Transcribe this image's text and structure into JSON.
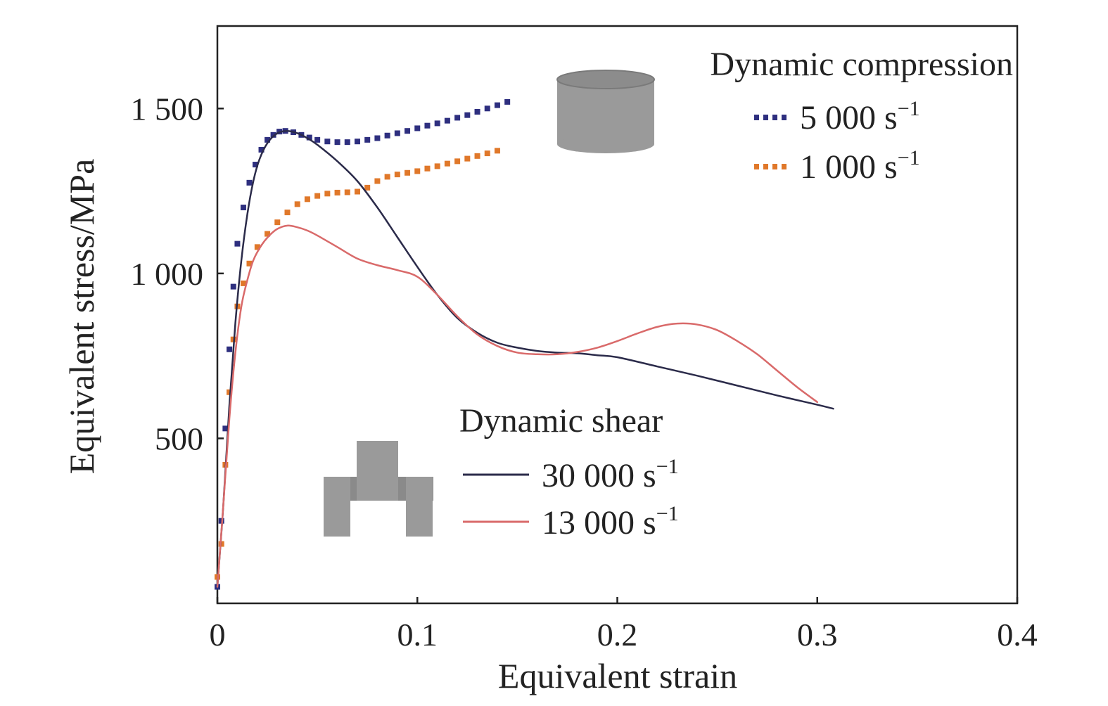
{
  "chart_data": {
    "type": "line",
    "xlabel": "Equivalent strain",
    "ylabel": "Equivalent stress/MPa",
    "xlim": [
      0,
      0.4
    ],
    "ylim": [
      0,
      1750
    ],
    "x_ticks": [
      {
        "value": 0,
        "label": "0"
      },
      {
        "value": 0.1,
        "label": "0.1"
      },
      {
        "value": 0.2,
        "label": "0.2"
      },
      {
        "value": 0.3,
        "label": "0.3"
      },
      {
        "value": 0.4,
        "label": "0.4"
      }
    ],
    "y_ticks": [
      {
        "value": 500,
        "label": "500"
      },
      {
        "value": 1000,
        "label": "1 000"
      },
      {
        "value": 1500,
        "label": "1 500"
      }
    ],
    "grid": false,
    "legend_groups": [
      {
        "title": "Dynamic compression",
        "position": "top-right",
        "icon": "cylinder-icon"
      },
      {
        "title": "Dynamic shear",
        "position": "bottom-center",
        "icon": "hat-shaped-specimen-icon"
      }
    ],
    "series": [
      {
        "name": "5 000 s",
        "name_superscript": "−1",
        "group": "Dynamic compression",
        "style": "dotted",
        "color": "#2e2f7f",
        "x": [
          0.0,
          0.002,
          0.004,
          0.006,
          0.008,
          0.01,
          0.013,
          0.016,
          0.019,
          0.022,
          0.025,
          0.028,
          0.031,
          0.034,
          0.038,
          0.042,
          0.046,
          0.05,
          0.055,
          0.06,
          0.065,
          0.07,
          0.075,
          0.08,
          0.085,
          0.09,
          0.095,
          0.1,
          0.105,
          0.11,
          0.115,
          0.12,
          0.125,
          0.13,
          0.135,
          0.14,
          0.145
        ],
        "y": [
          50,
          250,
          530,
          770,
          960,
          1090,
          1200,
          1275,
          1330,
          1375,
          1405,
          1420,
          1430,
          1432,
          1428,
          1420,
          1412,
          1405,
          1400,
          1398,
          1398,
          1400,
          1405,
          1410,
          1418,
          1425,
          1432,
          1440,
          1448,
          1455,
          1463,
          1472,
          1480,
          1490,
          1500,
          1510,
          1520
        ]
      },
      {
        "name": "1 000 s",
        "name_superscript": "−1",
        "group": "Dynamic compression",
        "style": "dotted",
        "color": "#e0782a",
        "x": [
          0.0,
          0.002,
          0.004,
          0.006,
          0.008,
          0.01,
          0.013,
          0.016,
          0.02,
          0.025,
          0.03,
          0.035,
          0.04,
          0.045,
          0.05,
          0.055,
          0.06,
          0.065,
          0.07,
          0.075,
          0.08,
          0.085,
          0.09,
          0.095,
          0.1,
          0.105,
          0.11,
          0.115,
          0.12,
          0.125,
          0.13,
          0.135,
          0.14
        ],
        "y": [
          80,
          180,
          420,
          640,
          800,
          900,
          970,
          1030,
          1080,
          1120,
          1155,
          1185,
          1210,
          1225,
          1235,
          1242,
          1245,
          1246,
          1248,
          1260,
          1280,
          1293,
          1300,
          1305,
          1310,
          1318,
          1325,
          1333,
          1340,
          1348,
          1356,
          1364,
          1372
        ]
      },
      {
        "name": "30 000 s",
        "name_superscript": "−1",
        "group": "Dynamic shear",
        "style": "solid",
        "color": "#2b2b4a",
        "x": [
          0.0,
          0.003,
          0.006,
          0.009,
          0.012,
          0.015,
          0.018,
          0.021,
          0.025,
          0.03,
          0.035,
          0.04,
          0.045,
          0.05,
          0.06,
          0.07,
          0.08,
          0.09,
          0.1,
          0.11,
          0.12,
          0.13,
          0.14,
          0.15,
          0.16,
          0.17,
          0.18,
          0.19,
          0.2,
          0.22,
          0.24,
          0.26,
          0.28,
          0.3,
          0.308
        ],
        "y": [
          50,
          300,
          600,
          850,
          1040,
          1180,
          1280,
          1345,
          1395,
          1425,
          1432,
          1425,
          1410,
          1390,
          1340,
          1280,
          1200,
          1110,
          1020,
          935,
          865,
          820,
          790,
          775,
          765,
          760,
          758,
          752,
          746,
          718,
          690,
          660,
          630,
          602,
          590
        ]
      },
      {
        "name": "13 000 s",
        "name_superscript": "−1",
        "group": "Dynamic shear",
        "style": "solid",
        "color": "#d96a6a",
        "x": [
          0.0,
          0.003,
          0.006,
          0.009,
          0.012,
          0.015,
          0.018,
          0.022,
          0.026,
          0.03,
          0.035,
          0.04,
          0.045,
          0.05,
          0.06,
          0.07,
          0.08,
          0.09,
          0.1,
          0.11,
          0.12,
          0.13,
          0.14,
          0.15,
          0.16,
          0.17,
          0.18,
          0.19,
          0.2,
          0.21,
          0.22,
          0.23,
          0.24,
          0.25,
          0.26,
          0.27,
          0.28,
          0.29,
          0.3
        ],
        "y": [
          50,
          300,
          560,
          760,
          900,
          980,
          1040,
          1085,
          1115,
          1135,
          1145,
          1140,
          1130,
          1115,
          1080,
          1045,
          1025,
          1010,
          990,
          935,
          870,
          815,
          780,
          760,
          755,
          755,
          762,
          775,
          795,
          818,
          838,
          848,
          845,
          828,
          795,
          755,
          705,
          655,
          610
        ]
      }
    ]
  },
  "colors": {
    "frame": "#222222",
    "specimen_gray": "#9a9a9a",
    "specimen_edge": "#7a7a7a"
  }
}
